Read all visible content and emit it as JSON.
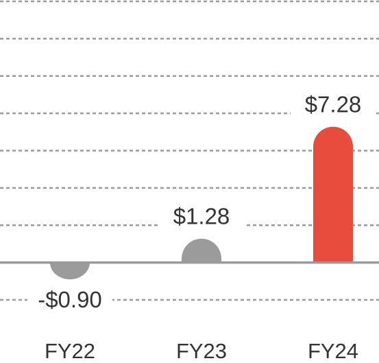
{
  "chart_data": {
    "type": "bar",
    "categories": [
      "FY22",
      "FY23",
      "FY24"
    ],
    "values": [
      -0.9,
      1.28,
      7.28
    ],
    "value_labels": [
      "-$0.90",
      "$1.28",
      "$7.28"
    ],
    "colors": [
      "#9b9b9b",
      "#9b9b9b",
      "#e84c3d"
    ],
    "ylim": [
      -2,
      14
    ],
    "yticks": [
      -2,
      0,
      2,
      4,
      6,
      8,
      10,
      12,
      14
    ],
    "grid": true
  }
}
